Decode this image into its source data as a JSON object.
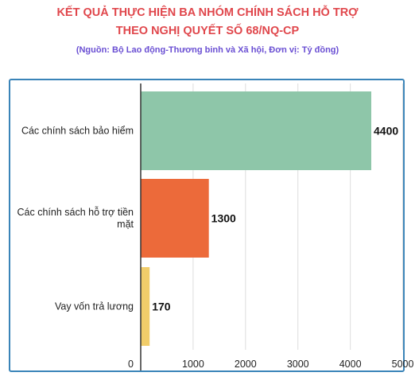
{
  "header": {
    "title_line1": "KẾT QUẢ THỰC HIỆN BA NHÓM CHÍNH SÁCH HỖ TRỢ",
    "title_line2": "THEO NGHỊ QUYẾT SỐ 68/NQ-CP",
    "subtitle": "(Nguồn: Bộ Lao động-Thương binh và Xã hội, Đơn vị: Tỷ đồng)"
  },
  "chart_data": {
    "type": "bar",
    "orientation": "horizontal",
    "title": "KẾT QUẢ THỰC HIỆN BA NHÓM CHÍNH SÁCH HỖ TRỢ THEO NGHỊ QUYẾT SỐ 68/NQ-CP",
    "subtitle": "(Nguồn: Bộ Lao động-Thương binh và Xã hội, Đơn vị: Tỷ đồng)",
    "categories": [
      [
        "Các chính sách bảo hiểm"
      ],
      [
        "Các chính sách hỗ trợ tiền",
        "mặt"
      ],
      [
        "Vay vốn trả lương"
      ]
    ],
    "values": [
      4400,
      1300,
      170
    ],
    "value_labels": [
      "4400",
      "1300",
      "170"
    ],
    "colors": [
      "#8ec6a9",
      "#ec6a3a",
      "#f1cd6a"
    ],
    "xlim": [
      0,
      5000
    ],
    "xticks": [
      0,
      1000,
      2000,
      3000,
      4000,
      5000
    ],
    "grid": true,
    "legend": "none"
  }
}
